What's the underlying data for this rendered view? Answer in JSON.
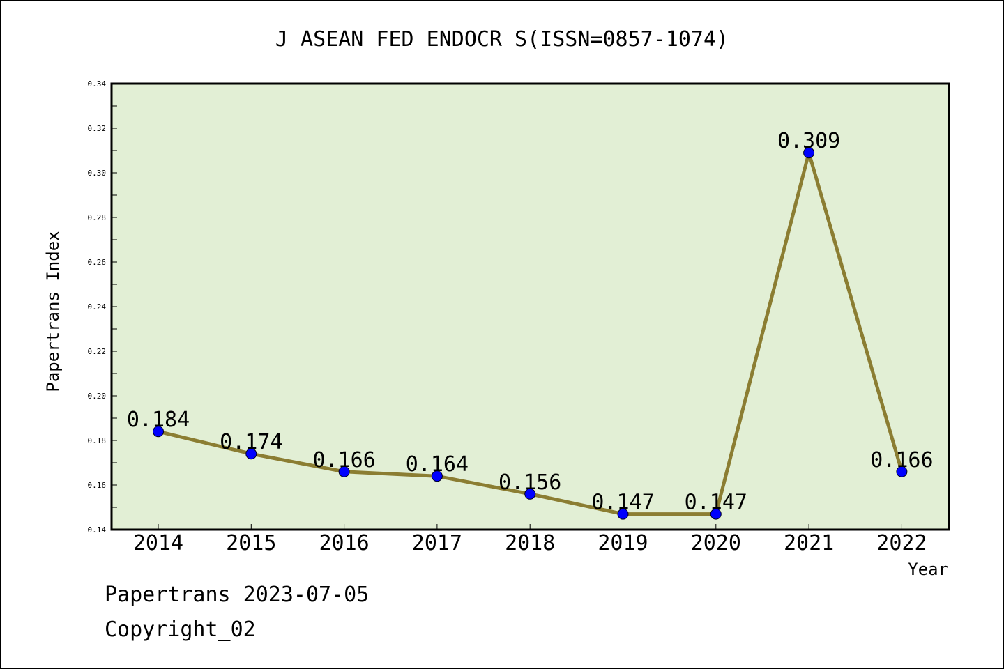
{
  "chart_data": {
    "type": "line",
    "title": "J ASEAN FED ENDOCR S(ISSN=0857-1074)",
    "xlabel": "Year",
    "ylabel": "Papertrans Index",
    "categories": [
      "2014",
      "2015",
      "2016",
      "2017",
      "2018",
      "2019",
      "2020",
      "2021",
      "2022"
    ],
    "series": [
      {
        "values": [
          0.184,
          0.174,
          0.166,
          0.164,
          0.156,
          0.147,
          0.147,
          0.309,
          0.166
        ],
        "labels": [
          "0.184",
          "0.174",
          "0.166",
          "0.164",
          "0.156",
          "0.147",
          "0.147",
          "0.309",
          "0.166"
        ]
      }
    ],
    "ylim": [
      0.14,
      0.34
    ],
    "yticks": [
      "0.14",
      "0.16",
      "0.18",
      "0.20",
      "0.22",
      "0.24",
      "0.26",
      "0.28",
      "0.30",
      "0.32",
      "0.34"
    ],
    "grid": false,
    "colors": {
      "plot_background": "#e2efd5",
      "line": "#8b7d32",
      "marker": "#0000ff"
    }
  },
  "footer": {
    "date_line": "Papertrans 2023-07-05",
    "copyright": "Copyright_02"
  }
}
